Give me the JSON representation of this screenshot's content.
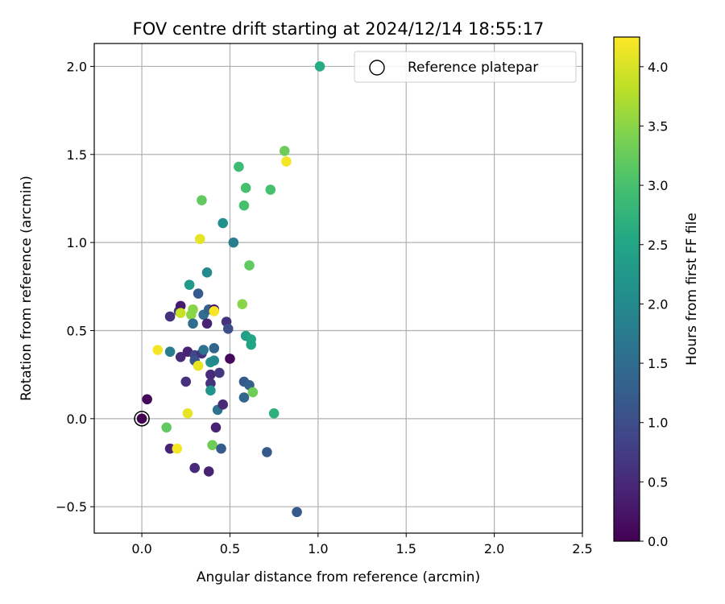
{
  "chart_data": {
    "type": "scatter",
    "title": "FOV centre drift starting at 2024/12/14 18:55:17",
    "xlabel": "Angular distance from reference (arcmin)",
    "ylabel": "Rotation from reference (arcmin)",
    "xlim": [
      -0.27,
      2.5
    ],
    "ylim": [
      -0.65,
      2.13
    ],
    "x_ticks": [
      0.0,
      0.5,
      1.0,
      1.5,
      2.0,
      2.5
    ],
    "x_tick_labels": [
      "0.0",
      "0.5",
      "1.0",
      "1.5",
      "2.0",
      "2.5"
    ],
    "y_ticks": [
      -0.5,
      0.0,
      0.5,
      1.0,
      1.5,
      2.0
    ],
    "y_tick_labels": [
      "−0.5",
      "0.0",
      "0.5",
      "1.0",
      "1.5",
      "2.0"
    ],
    "grid": true,
    "legend": {
      "position": "top-right",
      "entries": [
        "Reference platepar"
      ]
    },
    "reference_point": {
      "x": 0.0,
      "y": 0.0
    },
    "colorbar": {
      "label": "Hours from first FF file",
      "range": [
        0.0,
        4.25
      ],
      "ticks": [
        0.0,
        0.5,
        1.0,
        1.5,
        2.0,
        2.5,
        3.0,
        3.5,
        4.0
      ],
      "tick_labels": [
        "0.0",
        "0.5",
        "1.0",
        "1.5",
        "2.0",
        "2.5",
        "3.0",
        "3.5",
        "4.0"
      ],
      "colormap": "viridis"
    },
    "points": [
      {
        "x": 0.0,
        "y": 0.0,
        "h": 0.0
      },
      {
        "x": 0.03,
        "y": 0.11,
        "h": 0.1
      },
      {
        "x": 0.14,
        "y": -0.05,
        "h": 3.2
      },
      {
        "x": 0.16,
        "y": -0.17,
        "h": 0.4
      },
      {
        "x": 0.2,
        "y": -0.17,
        "h": 4.2
      },
      {
        "x": 0.09,
        "y": 0.39,
        "h": 4.2
      },
      {
        "x": 0.16,
        "y": 0.38,
        "h": 1.8
      },
      {
        "x": 0.16,
        "y": 0.58,
        "h": 0.6
      },
      {
        "x": 0.21,
        "y": 0.61,
        "h": 0.7
      },
      {
        "x": 0.22,
        "y": 0.64,
        "h": 0.3
      },
      {
        "x": 0.22,
        "y": 0.6,
        "h": 3.9
      },
      {
        "x": 0.22,
        "y": 0.35,
        "h": 0.5
      },
      {
        "x": 0.25,
        "y": 0.21,
        "h": 0.6
      },
      {
        "x": 0.26,
        "y": 0.38,
        "h": 0.4
      },
      {
        "x": 0.26,
        "y": 0.03,
        "h": 4.1
      },
      {
        "x": 0.27,
        "y": 0.76,
        "h": 2.3
      },
      {
        "x": 0.28,
        "y": 0.59,
        "h": 3.5
      },
      {
        "x": 0.29,
        "y": 0.62,
        "h": 3.5
      },
      {
        "x": 0.29,
        "y": 0.54,
        "h": 1.5
      },
      {
        "x": 0.3,
        "y": 0.36,
        "h": 0.9
      },
      {
        "x": 0.3,
        "y": 0.33,
        "h": 1.1
      },
      {
        "x": 0.3,
        "y": -0.28,
        "h": 0.5
      },
      {
        "x": 0.32,
        "y": 0.71,
        "h": 1.2
      },
      {
        "x": 0.32,
        "y": 0.3,
        "h": 4.1
      },
      {
        "x": 0.33,
        "y": 1.02,
        "h": 4.1
      },
      {
        "x": 0.34,
        "y": 1.24,
        "h": 3.2
      },
      {
        "x": 0.34,
        "y": 0.37,
        "h": 0.6
      },
      {
        "x": 0.35,
        "y": 0.39,
        "h": 1.6
      },
      {
        "x": 0.35,
        "y": 0.59,
        "h": 1.5
      },
      {
        "x": 0.37,
        "y": 0.83,
        "h": 2.0
      },
      {
        "x": 0.37,
        "y": 0.54,
        "h": 0.4
      },
      {
        "x": 0.38,
        "y": 0.62,
        "h": 1.3
      },
      {
        "x": 0.38,
        "y": -0.3,
        "h": 0.4
      },
      {
        "x": 0.39,
        "y": 0.25,
        "h": 0.5
      },
      {
        "x": 0.39,
        "y": 0.2,
        "h": 0.6
      },
      {
        "x": 0.39,
        "y": 0.16,
        "h": 2.2
      },
      {
        "x": 0.39,
        "y": 0.32,
        "h": 2.2
      },
      {
        "x": 0.4,
        "y": -0.15,
        "h": 3.3
      },
      {
        "x": 0.41,
        "y": 0.33,
        "h": 2.0
      },
      {
        "x": 0.41,
        "y": 0.62,
        "h": 0.2
      },
      {
        "x": 0.41,
        "y": 0.61,
        "h": 4.2
      },
      {
        "x": 0.41,
        "y": 0.4,
        "h": 1.4
      },
      {
        "x": 0.42,
        "y": -0.05,
        "h": 0.4
      },
      {
        "x": 0.43,
        "y": 0.05,
        "h": 1.6
      },
      {
        "x": 0.44,
        "y": 0.26,
        "h": 0.7
      },
      {
        "x": 0.45,
        "y": -0.17,
        "h": 1.2
      },
      {
        "x": 0.46,
        "y": 0.08,
        "h": 0.5
      },
      {
        "x": 0.46,
        "y": 1.11,
        "h": 2.1
      },
      {
        "x": 0.48,
        "y": 0.55,
        "h": 0.6
      },
      {
        "x": 0.49,
        "y": 0.51,
        "h": 1.0
      },
      {
        "x": 0.5,
        "y": 0.34,
        "h": 0.1
      },
      {
        "x": 0.52,
        "y": 1.0,
        "h": 1.8
      },
      {
        "x": 0.55,
        "y": 1.43,
        "h": 2.9
      },
      {
        "x": 0.57,
        "y": 0.65,
        "h": 3.5
      },
      {
        "x": 0.58,
        "y": 0.12,
        "h": 1.4
      },
      {
        "x": 0.58,
        "y": 0.21,
        "h": 1.2
      },
      {
        "x": 0.58,
        "y": 1.21,
        "h": 3.0
      },
      {
        "x": 0.59,
        "y": 1.31,
        "h": 3.0
      },
      {
        "x": 0.59,
        "y": 0.47,
        "h": 2.4
      },
      {
        "x": 0.61,
        "y": 0.19,
        "h": 1.3
      },
      {
        "x": 0.61,
        "y": 0.87,
        "h": 3.2
      },
      {
        "x": 0.62,
        "y": 0.45,
        "h": 2.5
      },
      {
        "x": 0.62,
        "y": 0.42,
        "h": 2.5
      },
      {
        "x": 0.63,
        "y": 0.15,
        "h": 3.3
      },
      {
        "x": 0.71,
        "y": -0.19,
        "h": 1.2
      },
      {
        "x": 0.73,
        "y": 1.3,
        "h": 3.0
      },
      {
        "x": 0.75,
        "y": 0.03,
        "h": 2.7
      },
      {
        "x": 0.81,
        "y": 1.52,
        "h": 3.3
      },
      {
        "x": 0.82,
        "y": 1.46,
        "h": 4.2
      },
      {
        "x": 0.88,
        "y": -0.53,
        "h": 1.2
      },
      {
        "x": 1.01,
        "y": 2.0,
        "h": 2.6
      }
    ]
  }
}
